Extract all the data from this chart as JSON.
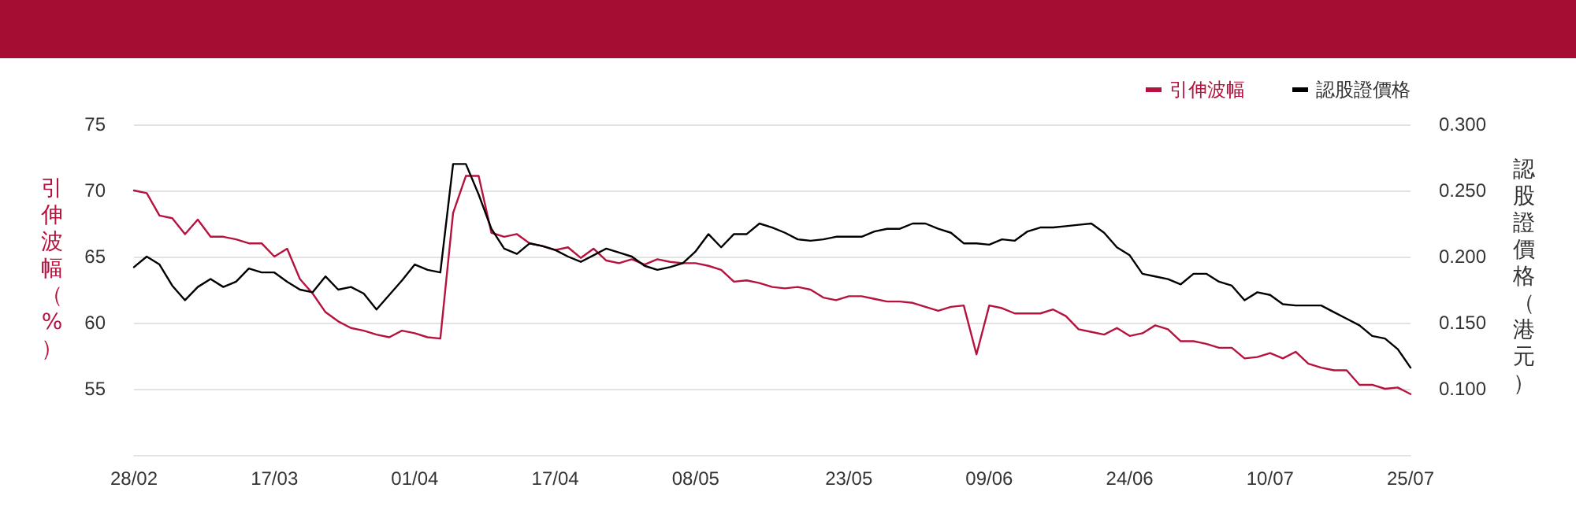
{
  "chart_data": {
    "type": "line",
    "ylabel": "引伸波幅（%）",
    "y2label": "認股證價格（港元）",
    "categories": [
      "28/02",
      null,
      null,
      null,
      null,
      null,
      null,
      null,
      null,
      null,
      null,
      "17/03",
      null,
      null,
      null,
      null,
      null,
      null,
      null,
      null,
      null,
      null,
      "01/04",
      null,
      null,
      null,
      null,
      null,
      null,
      null,
      null,
      null,
      null,
      "17/04",
      null,
      null,
      null,
      null,
      null,
      null,
      null,
      null,
      null,
      null,
      "08/05",
      null,
      null,
      null,
      null,
      null,
      null,
      null,
      null,
      null,
      null,
      null,
      "23/05",
      null,
      null,
      null,
      null,
      null,
      null,
      null,
      null,
      null,
      null,
      "09/06",
      null,
      null,
      null,
      null,
      null,
      null,
      null,
      null,
      null,
      null,
      "24/06",
      null,
      null,
      null,
      null,
      null,
      null,
      null,
      null,
      null,
      null,
      "10/07",
      null,
      null,
      null,
      null,
      null,
      null,
      null,
      null,
      null,
      null,
      "25/07"
    ],
    "series": [
      {
        "name": "引伸波幅",
        "color": "#b5123e",
        "axis": "y",
        "values": [
          70.0,
          69.8,
          68.1,
          67.9,
          66.7,
          67.8,
          66.5,
          66.5,
          66.3,
          66.0,
          66.0,
          65.0,
          65.6,
          63.3,
          62.2,
          60.8,
          60.1,
          59.6,
          59.4,
          59.1,
          58.9,
          59.4,
          59.2,
          58.9,
          58.8,
          68.3,
          71.1,
          71.1,
          66.8,
          66.5,
          66.7,
          66.0,
          65.8,
          65.5,
          65.7,
          64.9,
          65.6,
          64.7,
          64.5,
          64.8,
          64.4,
          64.8,
          64.6,
          64.5,
          64.5,
          64.3,
          64.0,
          63.1,
          63.2,
          63.0,
          62.7,
          62.6,
          62.7,
          62.5,
          61.9,
          61.7,
          62.0,
          62.0,
          61.8,
          61.6,
          61.6,
          61.5,
          61.2,
          60.9,
          61.2,
          61.3,
          57.6,
          61.3,
          61.1,
          60.7,
          60.7,
          60.7,
          61.0,
          60.5,
          59.5,
          59.3,
          59.1,
          59.6,
          59.0,
          59.2,
          59.8,
          59.5,
          58.6,
          58.6,
          58.4,
          58.1,
          58.1,
          57.3,
          57.4,
          57.7,
          57.3,
          57.8,
          56.9,
          56.6,
          56.4,
          56.4,
          55.3,
          55.3,
          55.0,
          55.1,
          54.6
        ]
      },
      {
        "name": "認股證價格",
        "color": "#000000",
        "axis": "y2",
        "values": [
          0.192,
          0.2,
          0.194,
          0.178,
          0.167,
          0.177,
          0.183,
          0.177,
          0.181,
          0.191,
          0.188,
          0.188,
          0.181,
          0.175,
          0.173,
          0.185,
          0.175,
          0.177,
          0.172,
          0.16,
          0.171,
          0.182,
          0.194,
          0.19,
          0.188,
          0.27,
          0.27,
          0.247,
          0.221,
          0.206,
          0.202,
          0.21,
          0.208,
          0.205,
          0.2,
          0.196,
          0.201,
          0.206,
          0.203,
          0.2,
          0.193,
          0.19,
          0.192,
          0.195,
          0.204,
          0.217,
          0.207,
          0.217,
          0.217,
          0.225,
          0.222,
          0.218,
          0.213,
          0.212,
          0.213,
          0.215,
          0.215,
          0.215,
          0.219,
          0.221,
          0.221,
          0.225,
          0.225,
          0.221,
          0.218,
          0.21,
          0.21,
          0.209,
          0.213,
          0.212,
          0.219,
          0.222,
          0.222,
          0.223,
          0.224,
          0.225,
          0.218,
          0.207,
          0.201,
          0.187,
          0.185,
          0.183,
          0.179,
          0.187,
          0.187,
          0.181,
          0.178,
          0.167,
          0.173,
          0.171,
          0.164,
          0.163,
          0.163,
          0.163,
          0.158,
          0.153,
          0.148,
          0.14,
          0.138,
          0.13,
          0.116
        ]
      }
    ],
    "ylim": [
      50,
      75
    ],
    "yticks": [
      55,
      60,
      65,
      70,
      75
    ],
    "y2lim": [
      0.05,
      0.3
    ],
    "y2ticks": [
      {
        "value": 0.1,
        "label": "0.100"
      },
      {
        "value": 0.15,
        "label": "0.150"
      },
      {
        "value": 0.2,
        "label": "0.200"
      },
      {
        "value": 0.25,
        "label": "0.250"
      },
      {
        "value": 0.3,
        "label": "0.300"
      }
    ],
    "grid": "y",
    "legend": "top right",
    "marker": "none",
    "line_style": "solid"
  }
}
